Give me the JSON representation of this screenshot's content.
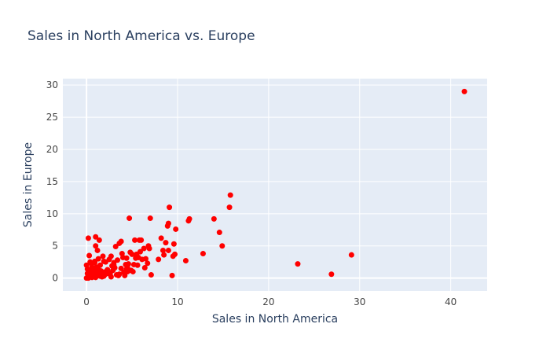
{
  "chart_data": {
    "type": "scatter",
    "title": "Sales in North America vs. Europe",
    "xlabel": "Sales in North America",
    "ylabel": "Sales in Europe",
    "xlim": [
      -2.6,
      44
    ],
    "ylim": [
      -2,
      31
    ],
    "xticks": [
      0,
      10,
      20,
      30,
      40
    ],
    "yticks": [
      0,
      5,
      10,
      15,
      20,
      25,
      30
    ],
    "grid": true,
    "legend": "none",
    "colors": {
      "marker": "#ff0000",
      "plot_bg": "#e5ecf6",
      "grid": "#ffffff",
      "text": "#444444",
      "title": "#2a3f5f"
    },
    "series": [
      {
        "x": [
          41.5,
          29.1,
          26.9,
          23.2,
          15.8,
          15.7,
          14.9,
          14.6,
          14.0,
          12.8,
          11.3,
          11.2,
          10.9,
          9.8,
          9.7,
          9.6,
          9.5,
          9.4,
          9.1,
          9.0,
          9.0,
          8.9,
          8.7,
          8.5,
          8.4,
          8.2,
          7.9,
          7.1,
          7.0,
          6.9,
          6.8,
          6.7,
          6.5,
          6.4,
          6.3,
          6.1,
          6.0,
          5.9,
          5.8,
          5.7,
          5.6,
          5.5,
          5.4,
          5.3,
          5.2,
          5.0,
          4.9,
          4.8,
          4.7,
          4.6,
          4.5,
          4.4,
          4.3,
          4.2,
          4.0,
          3.9,
          3.8,
          3.6,
          3.4,
          3.2,
          3.0,
          2.8,
          2.7,
          2.5,
          2.3,
          2.1,
          2.0,
          1.9,
          1.8,
          1.6,
          1.5,
          1.4,
          1.3,
          1.1,
          1.0,
          0.9,
          0.8,
          0.7,
          0.6,
          0.5,
          0.4,
          0.3,
          0.2,
          0.1,
          0.0,
          1.2,
          1.0,
          0.9,
          1.5,
          0.3,
          2.2,
          3.3,
          3.8,
          4.5,
          1.7,
          2.6,
          0.6,
          0.8,
          1.1,
          2.9,
          3.5,
          4.1,
          0.1,
          0.4,
          0.7,
          1.3,
          1.8,
          2.4,
          3.1,
          0.2,
          0.5,
          0.9,
          1.6,
          2.0,
          2.7,
          3.6,
          4.4,
          5.1,
          0.0,
          0.3,
          0.6,
          1.0,
          1.4,
          1.9,
          2.3,
          3.0,
          0.1,
          0.4,
          0.8,
          1.2
        ],
        "y": [
          29.0,
          3.6,
          0.6,
          2.2,
          12.9,
          11.0,
          5.0,
          7.1,
          9.2,
          3.8,
          9.2,
          8.9,
          2.7,
          7.6,
          3.7,
          5.3,
          3.4,
          0.4,
          11.0,
          8.5,
          4.3,
          8.1,
          5.5,
          3.6,
          4.3,
          6.2,
          2.9,
          0.5,
          9.3,
          4.6,
          5.0,
          2.3,
          3.0,
          1.6,
          4.6,
          2.9,
          5.9,
          4.1,
          5.9,
          3.2,
          2.0,
          3.7,
          3.1,
          5.9,
          2.1,
          3.7,
          1.2,
          4.0,
          9.3,
          2.2,
          1.6,
          3.1,
          2.1,
          0.4,
          3.2,
          3.8,
          5.7,
          5.4,
          2.8,
          4.9,
          2.4,
          1.9,
          3.4,
          2.9,
          1.3,
          2.5,
          0.9,
          2.6,
          3.4,
          0.7,
          2.0,
          5.9,
          3.0,
          1.7,
          6.4,
          2.4,
          0.9,
          0.8,
          1.2,
          2.3,
          2.5,
          3.5,
          6.2,
          1.4,
          2.0,
          4.3,
          5.0,
          2.6,
          0.3,
          0.3,
          1.1,
          0.5,
          1.5,
          1.0,
          0.2,
          0.8,
          0.1,
          1.0,
          0.6,
          1.2,
          0.4,
          0.9,
          0.1,
          0.5,
          0.3,
          1.3,
          0.4,
          0.7,
          1.6,
          0.0,
          0.9,
          0.2,
          1.1,
          0.5,
          0.2,
          0.6,
          1.4,
          1.0,
          0.0,
          0.6,
          1.7,
          0.1,
          1.2,
          0.3,
          0.8,
          2.0,
          0.7,
          0.2,
          1.5,
          0.4
        ]
      }
    ]
  }
}
